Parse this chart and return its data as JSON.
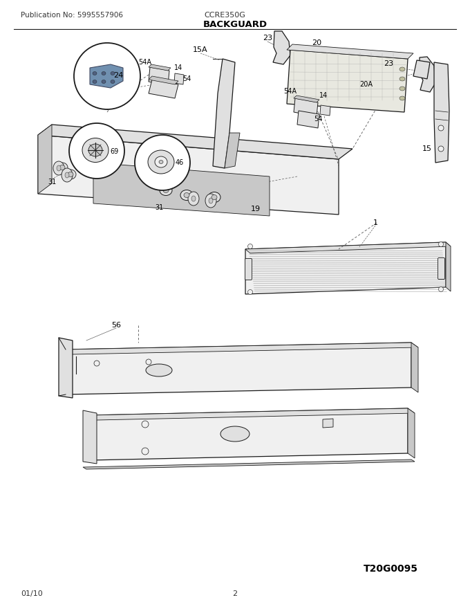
{
  "bg_color": "#ffffff",
  "line_color": "#1a1a1a",
  "fill_light": "#f0f0f0",
  "fill_mid": "#e0e0e0",
  "fill_dark": "#c8c8c8",
  "fill_darker": "#b0b0b0",
  "pub_no": "Publication No: 5995557906",
  "model": "CCRE350G",
  "title": "BACKGUARD",
  "date": "01/10",
  "page": "2",
  "diagram_id": "T20G0095",
  "label_fs": 8,
  "small_fs": 7
}
